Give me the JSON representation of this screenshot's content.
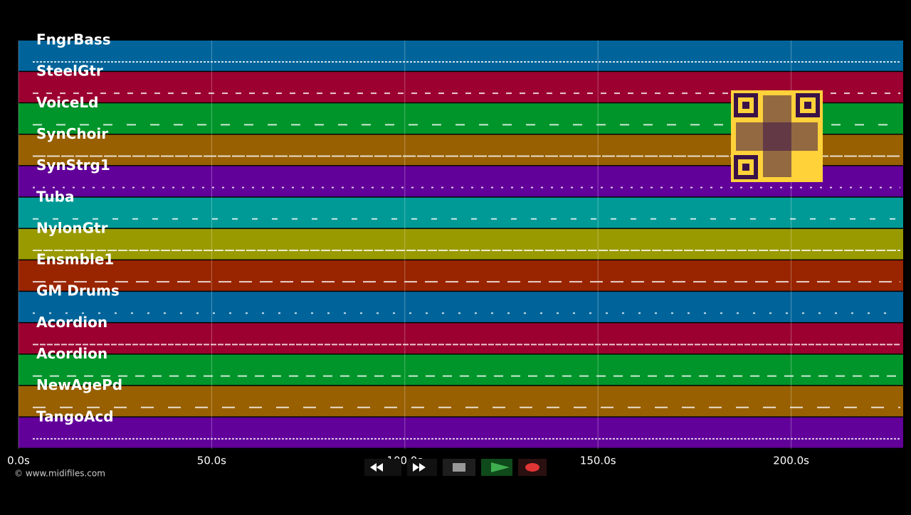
{
  "chart_data": {
    "type": "track-lanes",
    "categories": [
      "FngrBass",
      "SteelGtr",
      "VoiceLd",
      "SynChoir",
      "SynStrg1",
      "Tuba",
      "NylonGtr",
      "Ensmble1",
      "GM Drums",
      "Acordion",
      "Acordion",
      "NewAgePd",
      "TangoAcd"
    ],
    "colors": [
      "#00649a",
      "#9b0030",
      "#00952a",
      "#986000",
      "#62009a",
      "#009a96",
      "#999a00",
      "#982400",
      "#00649a",
      "#9b0030",
      "#00952a",
      "#986000",
      "#62009a"
    ],
    "xlim": [
      0,
      229
    ],
    "xticks": [
      {
        "value": 0,
        "label": "0.0s"
      },
      {
        "value": 50,
        "label": "50.0s"
      },
      {
        "value": 100,
        "label": "100.0s"
      },
      {
        "value": 150,
        "label": "150.0s"
      },
      {
        "value": 200,
        "label": "200.0s"
      }
    ],
    "grid": true
  },
  "footer": {
    "copyright": "© www.midifiles.com"
  }
}
